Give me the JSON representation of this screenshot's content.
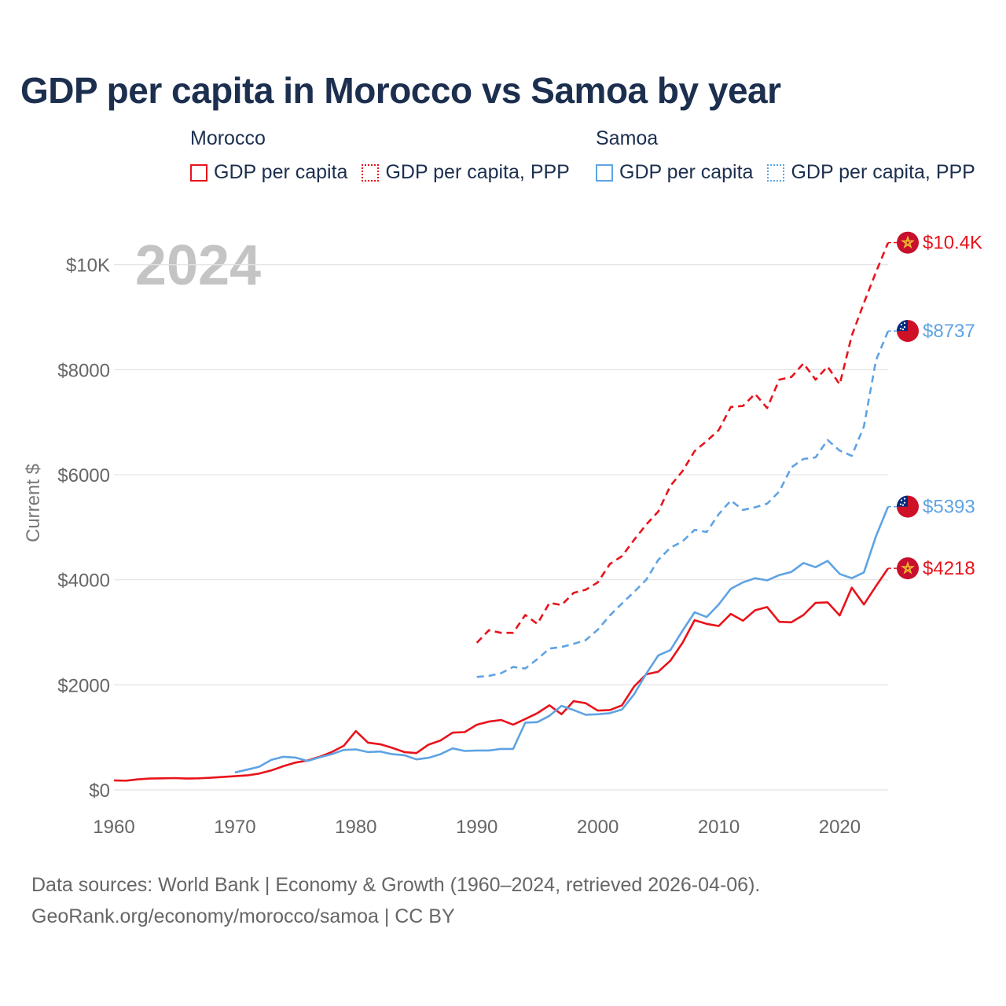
{
  "title": "GDP per capita in Morocco vs Samoa by year",
  "legend": {
    "groups": [
      {
        "name": "Morocco",
        "items": [
          "GDP per capita",
          "GDP per capita, PPP"
        ]
      },
      {
        "name": "Samoa",
        "items": [
          "GDP per capita",
          "GDP per capita, PPP"
        ]
      }
    ]
  },
  "year_watermark": "2024",
  "colors": {
    "morocco": "#e8131b",
    "samoa": "#5fa3e3",
    "grid": "#e3e3e3",
    "axis_text": "#666666",
    "watermark": "#c4c4c4"
  },
  "footer": {
    "line1": "Data sources: World Bank | Economy & Growth (1960–2024, retrieved 2026-04-06).",
    "line2": "GeoRank.org/economy/morocco/samoa | CC BY"
  },
  "chart_data": {
    "type": "line",
    "title": "GDP per capita in Morocco vs Samoa by year",
    "xlabel": "",
    "ylabel": "Current $",
    "xlim": [
      1960,
      2024
    ],
    "ylim": [
      0,
      10400
    ],
    "x_ticks": [
      1960,
      1970,
      1980,
      1990,
      2000,
      2010,
      2020
    ],
    "y_ticks": [
      {
        "value": 0,
        "label": "$0"
      },
      {
        "value": 2000,
        "label": "$2000"
      },
      {
        "value": 4000,
        "label": "$4000"
      },
      {
        "value": 6000,
        "label": "$6000"
      },
      {
        "value": 8000,
        "label": "$8000"
      },
      {
        "value": 10000,
        "label": "$10K"
      }
    ],
    "series": [
      {
        "name": "Morocco GDP per capita",
        "country": "morocco",
        "style": "solid",
        "end_label": "$4218",
        "start": 1960,
        "values": [
          180,
          175,
          200,
          215,
          220,
          225,
          215,
          220,
          230,
          245,
          260,
          275,
          310,
          370,
          450,
          520,
          560,
          630,
          720,
          840,
          1120,
          900,
          870,
          800,
          720,
          700,
          860,
          940,
          1090,
          1100,
          1240,
          1300,
          1330,
          1240,
          1350,
          1460,
          1610,
          1440,
          1690,
          1650,
          1510,
          1520,
          1610,
          1970,
          2200,
          2250,
          2460,
          2800,
          3230,
          3160,
          3120,
          3350,
          3220,
          3420,
          3480,
          3200,
          3190,
          3330,
          3560,
          3570,
          3320,
          3850,
          3530,
          3880,
          4218
        ]
      },
      {
        "name": "Morocco GDP per capita, PPP",
        "country": "morocco",
        "style": "dashed",
        "end_label": "$10.4K",
        "start": 1990,
        "values": [
          2800,
          3040,
          2990,
          2990,
          3330,
          3160,
          3560,
          3520,
          3750,
          3810,
          3950,
          4300,
          4450,
          4760,
          5050,
          5300,
          5790,
          6070,
          6450,
          6640,
          6850,
          7290,
          7310,
          7540,
          7270,
          7810,
          7860,
          8120,
          7810,
          8060,
          7720,
          8650,
          9270,
          9860,
          10420
        ]
      },
      {
        "name": "Samoa GDP per capita",
        "country": "samoa",
        "style": "solid",
        "end_label": "$5393",
        "start": 1970,
        "values": [
          330,
          385,
          440,
          570,
          630,
          615,
          550,
          620,
          680,
          760,
          770,
          720,
          730,
          680,
          660,
          580,
          610,
          680,
          790,
          740,
          750,
          750,
          780,
          780,
          1280,
          1290,
          1410,
          1600,
          1520,
          1430,
          1440,
          1460,
          1530,
          1820,
          2210,
          2560,
          2660,
          3030,
          3380,
          3290,
          3530,
          3830,
          3950,
          4030,
          3990,
          4090,
          4150,
          4320,
          4240,
          4360,
          4110,
          4030,
          4140,
          4830,
          5393
        ]
      },
      {
        "name": "Samoa GDP per capita, PPP",
        "country": "samoa",
        "style": "dashed",
        "end_label": "$8737",
        "start": 1990,
        "values": [
          2150,
          2170,
          2220,
          2340,
          2310,
          2490,
          2690,
          2720,
          2780,
          2850,
          3050,
          3320,
          3550,
          3770,
          4000,
          4380,
          4610,
          4730,
          4950,
          4910,
          5250,
          5510,
          5330,
          5380,
          5450,
          5680,
          6140,
          6300,
          6330,
          6660,
          6460,
          6360,
          6920,
          8180,
          8737
        ]
      }
    ]
  }
}
